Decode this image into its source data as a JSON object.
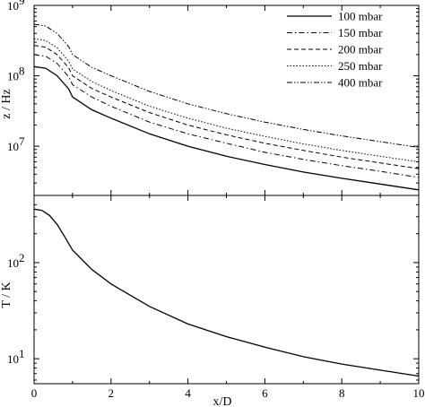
{
  "chart_data": [
    {
      "type": "line",
      "ylabel": "z / Hz",
      "yscale": "log",
      "ylim": [
        2000000,
        1000000000
      ],
      "xlim": [
        0,
        10
      ],
      "yticks": [
        {
          "value": 10000000,
          "base": "10",
          "exp": "7"
        },
        {
          "value": 100000000,
          "base": "10",
          "exp": "8"
        },
        {
          "value": 1000000000,
          "base": "10",
          "exp": "9"
        }
      ],
      "legend": "top-right",
      "series": [
        {
          "name": "100 mbar",
          "dash": "solid",
          "x": [
            0,
            0.3,
            0.6,
            0.9,
            1,
            1.5,
            2,
            3,
            4,
            5,
            6,
            7,
            8,
            9,
            10
          ],
          "values": [
            135000000,
            128000000,
            100000000,
            65000000,
            50000000,
            33000000,
            25000000,
            15000000,
            10000000,
            7200000,
            5500000,
            4300000,
            3500000,
            2900000,
            2400000
          ]
        },
        {
          "name": "150 mbar",
          "dash": "dashdot",
          "x": [
            0,
            0.3,
            0.6,
            0.9,
            1,
            1.5,
            2,
            3,
            4,
            5,
            6,
            7,
            8,
            9,
            10
          ],
          "values": [
            200000000,
            190000000,
            150000000,
            97000000,
            75000000,
            50000000,
            37000000,
            22000000,
            15000000,
            11000000,
            8200000,
            6500000,
            5300000,
            4400000,
            3600000
          ]
        },
        {
          "name": "200 mbar",
          "dash": "dashed",
          "x": [
            0,
            0.3,
            0.6,
            0.9,
            1,
            1.5,
            2,
            3,
            4,
            5,
            6,
            7,
            8,
            9,
            10
          ],
          "values": [
            270000000,
            255000000,
            200000000,
            130000000,
            100000000,
            66000000,
            50000000,
            30000000,
            20000000,
            14500000,
            11000000,
            8700000,
            7000000,
            5800000,
            4800000
          ]
        },
        {
          "name": "250 mbar",
          "dash": "dotted",
          "x": [
            0,
            0.3,
            0.6,
            0.9,
            1,
            1.5,
            2,
            3,
            4,
            5,
            6,
            7,
            8,
            9,
            10
          ],
          "values": [
            335000000,
            318000000,
            250000000,
            162000000,
            125000000,
            83000000,
            62000000,
            37000000,
            25000000,
            18000000,
            13800000,
            10800000,
            8700000,
            7200000,
            6000000
          ]
        },
        {
          "name": "400 mbar",
          "dash": "dashdotdot",
          "x": [
            0,
            0.3,
            0.6,
            0.9,
            1,
            1.5,
            2,
            3,
            4,
            5,
            6,
            7,
            8,
            9,
            10
          ],
          "values": [
            540000000,
            510000000,
            400000000,
            260000000,
            200000000,
            132000000,
            100000000,
            60000000,
            40000000,
            29000000,
            22000000,
            17300000,
            14000000,
            11600000,
            9600000
          ]
        }
      ]
    },
    {
      "type": "line",
      "ylabel": "T / K",
      "xlabel": "x/D",
      "yscale": "log",
      "ylim": [
        5.5,
        500
      ],
      "xlim": [
        0,
        10
      ],
      "xticks": [
        "0",
        "2",
        "4",
        "6",
        "8",
        "10"
      ],
      "yticks": [
        {
          "value": 10,
          "base": "10",
          "exp": "1"
        },
        {
          "value": 100,
          "base": "10",
          "exp": "2"
        }
      ],
      "series": [
        {
          "x": [
            0,
            0.2,
            0.4,
            0.6,
            0.8,
            1,
            1.5,
            2,
            3,
            4,
            5,
            6,
            7,
            8,
            9,
            10
          ],
          "values": [
            360,
            350,
            310,
            250,
            185,
            135,
            85,
            60,
            35,
            23,
            17,
            13.2,
            10.5,
            8.8,
            7.6,
            6.6
          ]
        }
      ]
    }
  ]
}
